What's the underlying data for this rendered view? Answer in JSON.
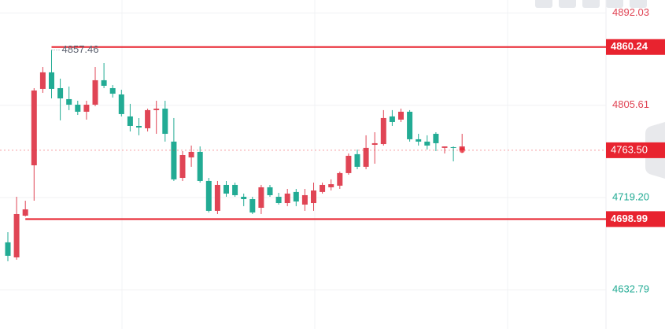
{
  "chart_data": {
    "type": "candlestick",
    "ylim": [
      4596,
      4904.3
    ],
    "yticks": [
      4892.03,
      4805.61,
      {
        "value": 4719.2,
        "label": "4719.20"
      },
      4632.79
    ],
    "grid": true,
    "up_color": "#22ab94",
    "down_color": "#e04555",
    "open": [
      4664.6,
      4703.7,
      4708.1,
      4819.5,
      4836.5,
      4821.0,
      4812.1,
      4806.2,
      4799.6,
      4806.2,
      4829.1,
      4823.9,
      4816.5,
      4797.4,
      4786.3,
      4784.8,
      4801.1,
      4802.5,
      4778.9,
      4736.2,
      4759.0,
      4762.0,
      4734.7,
      4706.7,
      4731.0,
      4722.9,
      4721.4,
      4717.7,
      4705.2,
      4728.8,
      4721.4,
      4714.0,
      4722.9,
      4715.5,
      4721.4,
      4725.8,
      4731.0,
      4731.7,
      4742.1,
      4758.3,
      4748.0,
      4765.7,
      4770.1,
      4793.7,
      4790.0,
      4799.6,
      4773.8,
      4771.6,
      4767.9,
      4770.1,
      4767.1,
      4765.7,
      4767.1
    ],
    "high": [
      4686.7,
      4719.9,
      4716.2,
      4821.7,
      4841.6,
      4857.46,
      4830.6,
      4823.2,
      4809.9,
      4809.9,
      4841.6,
      4845.3,
      4824.6,
      4820.2,
      4807.0,
      4793.7,
      4802.5,
      4809.9,
      4809.9,
      4793.7,
      4762.7,
      4767.9,
      4767.1,
      4737.6,
      4734.7,
      4734.7,
      4733.2,
      4722.9,
      4719.9,
      4731.0,
      4731.0,
      4723.6,
      4727.3,
      4727.3,
      4727.3,
      4733.2,
      4733.2,
      4736.2,
      4743.5,
      4760.5,
      4764.2,
      4777.5,
      4780.4,
      4801.1,
      4801.1,
      4802.5,
      4801.1,
      4778.9,
      4777.5,
      4780.4,
      4767.1,
      4767.1,
      4778.9
    ],
    "low": [
      4659.5,
      4660.9,
      4701.5,
      4716.2,
      4817.3,
      4812.1,
      4791.5,
      4801.1,
      4796.6,
      4792.2,
      4804.7,
      4821.7,
      4812.9,
      4795.2,
      4781.1,
      4777.5,
      4781.1,
      4778.9,
      4771.6,
      4734.7,
      4734.7,
      4748.0,
      4733.2,
      4705.2,
      4703.7,
      4719.9,
      4719.9,
      4711.1,
      4703.7,
      4703.7,
      4719.9,
      4712.6,
      4711.1,
      4711.1,
      4706.7,
      4706.7,
      4722.9,
      4725.8,
      4727.3,
      4740.6,
      4745.7,
      4745.7,
      4750.9,
      4767.9,
      4786.3,
      4790.0,
      4771.6,
      4767.9,
      4764.2,
      4762.7,
      4760.5,
      4753.1,
      4761.2
    ],
    "close": [
      4677.2,
      4663.1,
      4702.2,
      4749.4,
      4821.0,
      4836.5,
      4821.7,
      4811.4,
      4806.2,
      4799.6,
      4806.2,
      4829.1,
      4821.7,
      4815.8,
      4795.2,
      4786.3,
      4784.1,
      4801.1,
      4802.5,
      4771.6,
      4737.6,
      4756.8,
      4762.0,
      4734.7,
      4706.7,
      4731.0,
      4731.0,
      4719.9,
      4717.7,
      4709.6,
      4728.8,
      4719.9,
      4714.0,
      4724.4,
      4712.6,
      4714.0,
      4724.4,
      4728.8,
      4730.3,
      4742.1,
      4759.8,
      4748.0,
      4768.6,
      4769.3,
      4795.2,
      4792.2,
      4799.6,
      4773.8,
      4771.6,
      4778.9,
      4765.7,
      4766.4,
      4763.5
    ],
    "levels": [
      {
        "value": 4860.24,
        "color": "#e8232f"
      },
      {
        "value": 4698.99,
        "color": "#e8232f"
      }
    ],
    "last_price": {
      "value": 4763.5,
      "label": "4763.50",
      "color": "#e8232f"
    },
    "annotation": {
      "value": 4857.46
    }
  }
}
